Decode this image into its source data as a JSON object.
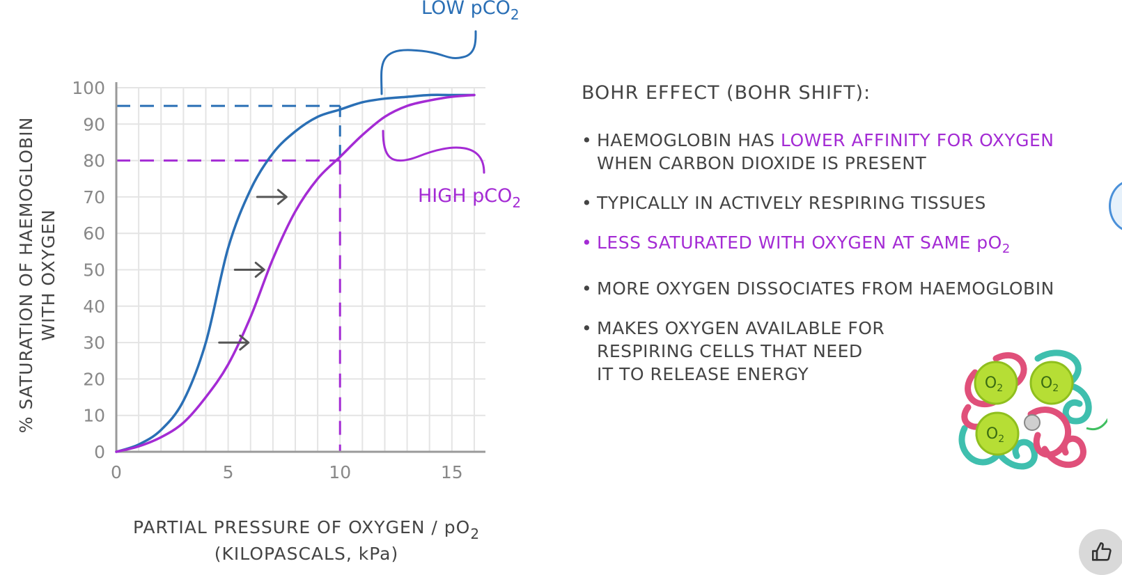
{
  "chart_data": {
    "type": "line",
    "title": "",
    "xlabel_line1": "PARTIAL PRESSURE OF OXYGEN / pO",
    "xlabel_sub": "2",
    "xlabel_line2": "(KILOPASCALS, kPa)",
    "ylabel_line1": "% SATURATION OF HAEMOGLOBIN",
    "ylabel_line2": "WITH OXYGEN",
    "xlim": [
      0,
      16.5
    ],
    "ylim": [
      0,
      100
    ],
    "x_ticks": [
      0,
      5,
      10,
      15
    ],
    "y_ticks": [
      0,
      10,
      20,
      30,
      40,
      50,
      60,
      70,
      80,
      90,
      100
    ],
    "grid": true,
    "series": [
      {
        "name": "LOW pCO2",
        "label_main": "LOW pCO",
        "label_sub": "2",
        "color": "#2a6fb5",
        "x": [
          0,
          1,
          2,
          3,
          4,
          5,
          6,
          7,
          8,
          9,
          10,
          11,
          12,
          13,
          14,
          15,
          16
        ],
        "y": [
          0,
          2,
          6,
          14,
          30,
          56,
          72,
          82,
          88,
          92,
          94,
          96,
          97,
          97.5,
          98,
          98,
          98
        ]
      },
      {
        "name": "HIGH pCO2",
        "label_main": "HIGH pCO",
        "label_sub": "2",
        "color": "#a42bd4",
        "x": [
          0,
          1,
          2,
          3,
          4,
          5,
          6,
          7,
          8,
          9,
          10,
          11,
          12,
          13,
          14,
          15,
          16
        ],
        "y": [
          0,
          1.5,
          4,
          8,
          15,
          24,
          37,
          53,
          66,
          75,
          81,
          87,
          92,
          95,
          96.5,
          97.5,
          98
        ]
      }
    ],
    "reference_lines": [
      {
        "axis": "y",
        "value": 95,
        "color": "#2a6fb5"
      },
      {
        "axis": "y",
        "value": 80,
        "color": "#a42bd4"
      },
      {
        "axis": "x",
        "value": 10,
        "color": "#2a6fb5"
      },
      {
        "axis": "x",
        "value": 10,
        "color": "#a42bd4"
      }
    ],
    "shift_arrows": [
      {
        "x": 6.3,
        "y": 70
      },
      {
        "x": 5.3,
        "y": 50
      },
      {
        "x": 4.6,
        "y": 30
      }
    ]
  },
  "notes": {
    "heading": "BOHR EFFECT (BOHR SHIFT):",
    "b1_a": "HAEMOGLOBIN HAS ",
    "b1_hl": "LOWER AFFINITY FOR OXYGEN",
    "b1_b": "WHEN CARBON DIOXIDE IS PRESENT",
    "b2": "TYPICALLY IN ACTIVELY RESPIRING TISSUES",
    "b3_main": "LESS SATURATED WITH OXYGEN AT SAME pO",
    "b3_sub": "2",
    "b4": "MORE OXYGEN DISSOCIATES FROM HAEMOGLOBIN",
    "b5_l1": "MAKES OXYGEN AVAILABLE FOR",
    "b5_l2": "RESPIRING CELLS THAT NEED",
    "b5_l3": "IT TO RELEASE ENERGY"
  },
  "molecule": {
    "o2_main": "O",
    "o2_sub": "2"
  },
  "colors": {
    "low": "#2a6fb5",
    "high": "#a42bd4",
    "grid": "#e4e4e4",
    "axis": "#9a9a9a",
    "text": "#444444"
  }
}
